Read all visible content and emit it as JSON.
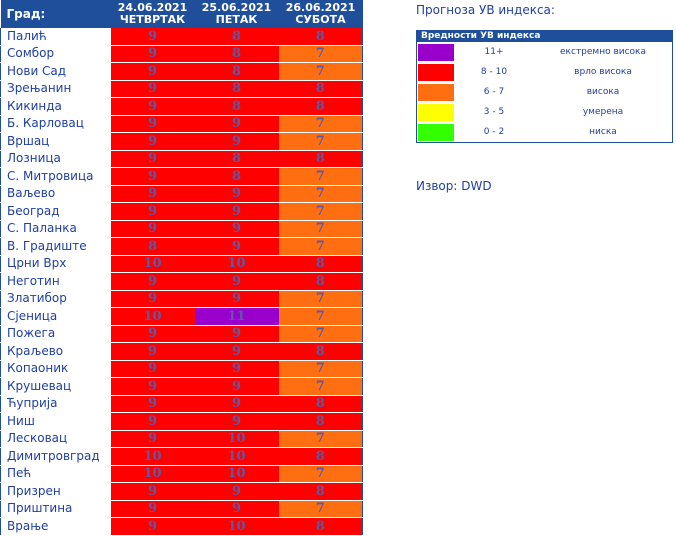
{
  "table": {
    "city_header": "Град:",
    "days": [
      {
        "date": "24.06.2021",
        "weekday": "ЧЕТВРТАК"
      },
      {
        "date": "25.06.2021",
        "weekday": "ПЕТАК"
      },
      {
        "date": "26.06.2021",
        "weekday": "СУБОТА"
      }
    ],
    "rows": [
      {
        "city": "Палић",
        "values": [
          "9",
          "8",
          "8"
        ]
      },
      {
        "city": "Сомбор",
        "values": [
          "9",
          "8",
          "7"
        ]
      },
      {
        "city": "Нови Сад",
        "values": [
          "9",
          "8",
          "7"
        ]
      },
      {
        "city": "Зрењанин",
        "values": [
          "9",
          "8",
          "8"
        ]
      },
      {
        "city": "Кикинда",
        "values": [
          "9",
          "8",
          "8"
        ]
      },
      {
        "city": "Б. Карловац",
        "values": [
          "9",
          "9",
          "7"
        ]
      },
      {
        "city": "Вршац",
        "values": [
          "9",
          "9",
          "7"
        ]
      },
      {
        "city": "Лозница",
        "values": [
          "9",
          "8",
          "8"
        ]
      },
      {
        "city": "С. Митровица",
        "values": [
          "9",
          "8",
          "7"
        ]
      },
      {
        "city": "Ваљево",
        "values": [
          "9",
          "9",
          "7"
        ]
      },
      {
        "city": "Београд",
        "values": [
          "9",
          "9",
          "7"
        ]
      },
      {
        "city": "С. Паланка",
        "values": [
          "9",
          "9",
          "7"
        ]
      },
      {
        "city": "В. Градиште",
        "values": [
          "8",
          "9",
          "7"
        ]
      },
      {
        "city": "Црни Врх",
        "values": [
          "10",
          "10",
          "8"
        ]
      },
      {
        "city": "Неготин",
        "values": [
          "9",
          "9",
          "8"
        ]
      },
      {
        "city": "Златибор",
        "values": [
          "9",
          "9",
          "7"
        ]
      },
      {
        "city": "Сјеница",
        "values": [
          "10",
          "11",
          "7"
        ]
      },
      {
        "city": "Пожега",
        "values": [
          "9",
          "9",
          "7"
        ]
      },
      {
        "city": "Краљево",
        "values": [
          "9",
          "9",
          "8"
        ]
      },
      {
        "city": "Копаоник",
        "values": [
          "9",
          "9",
          "7"
        ]
      },
      {
        "city": "Крушевац",
        "values": [
          "9",
          "9",
          "7"
        ]
      },
      {
        "city": "Ћуприја",
        "values": [
          "9",
          "9",
          "8"
        ]
      },
      {
        "city": "Ниш",
        "values": [
          "9",
          "9",
          "8"
        ]
      },
      {
        "city": "Лесковац",
        "values": [
          "9",
          "10",
          "7"
        ]
      },
      {
        "city": "Димитровград",
        "values": [
          "10",
          "10",
          "8"
        ]
      },
      {
        "city": "Пећ",
        "values": [
          "10",
          "10",
          "7"
        ]
      },
      {
        "city": "Призрен",
        "values": [
          "9",
          "9",
          "8"
        ]
      },
      {
        "city": "Приштина",
        "values": [
          "9",
          "9",
          "7"
        ]
      },
      {
        "city": "Врање",
        "values": [
          "9",
          "10",
          "8"
        ]
      }
    ]
  },
  "legend": {
    "title": "Прогноза УВ индекса:",
    "header": "Вредности УВ индекса",
    "items": [
      {
        "range": "11+",
        "label": "екстремно висока",
        "color": "#9900cc"
      },
      {
        "range": "8 - 10",
        "label": "врло висока",
        "color": "#ff0000"
      },
      {
        "range": "6 - 7",
        "label": "висока",
        "color": "#ff6f11"
      },
      {
        "range": "3 - 5",
        "label": "умерена",
        "color": "#ffff00"
      },
      {
        "range": "0 - 2",
        "label": "ниска",
        "color": "#33ff00"
      }
    ]
  },
  "source": "Извор: DWD"
}
